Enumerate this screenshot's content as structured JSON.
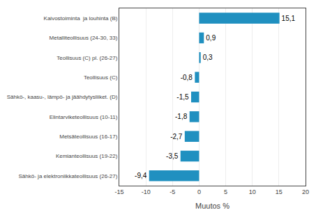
{
  "chart_data": {
    "type": "bar",
    "orientation": "horizontal",
    "categories": [
      "Sähkö- ja elektroniikkateollisuus (26-27)",
      "Kemianteollisuus (19-22)",
      "Metsäteollisuus (16-17)",
      "Elintarviketeollisuus (10-11)",
      "Sähkö-, kaasu-, lämpö- ja jäähdytysliiket. (D)",
      "Teollisuus (C)",
      "Teollisuus (C) pl. (26-27)",
      "Metalliteollisuus (24-30, 33)",
      "Kaivostoiminta  ja louhinta (B)"
    ],
    "values": [
      -9.4,
      -3.5,
      -2.7,
      -1.8,
      -1.5,
      -0.8,
      0.3,
      0.9,
      15.1
    ],
    "value_labels": [
      "-9,4",
      "-3,5",
      "-2,7",
      "-1,8",
      "-1,5",
      "-0,8",
      "0,3",
      "0,9",
      "15,1"
    ],
    "data_labels": true,
    "color": "#2090C0",
    "xlim": [
      -15,
      20
    ],
    "xticks": [
      -15,
      -10,
      -5,
      0,
      5,
      10,
      15,
      20
    ],
    "xlabel": "Muutos %",
    "grid": true
  }
}
